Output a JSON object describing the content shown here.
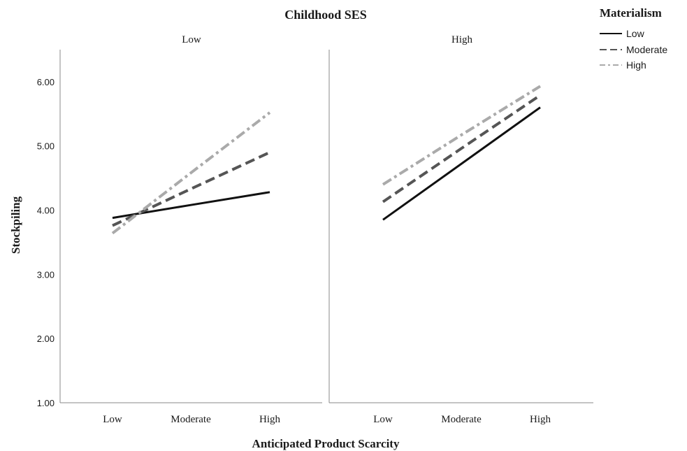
{
  "chart_data": {
    "type": "line",
    "title": "Childhood SES",
    "xlabel": "Anticipated Product Scarcity",
    "ylabel": "Stockpiling",
    "ylim": [
      1,
      6.5
    ],
    "yticks": [
      "1.00",
      "2.00",
      "3.00",
      "4.00",
      "5.00",
      "6.00"
    ],
    "categories": [
      "Low",
      "Moderate",
      "High"
    ],
    "grid": false,
    "legend": {
      "title": "Materialism",
      "placement": "top-right",
      "entries": [
        "Low",
        "Moderate",
        "High"
      ]
    },
    "series_styles": {
      "Low": {
        "color": "#111111",
        "dash": "solid"
      },
      "Moderate": {
        "color": "#555555",
        "dash": "dashed"
      },
      "High": {
        "color": "#aaaaaa",
        "dash": "dash-dot"
      }
    },
    "panels": [
      {
        "label": "Low",
        "series": [
          {
            "name": "Low",
            "values": [
              3.88,
              4.08,
              4.28
            ]
          },
          {
            "name": "Moderate",
            "values": [
              3.76,
              4.33,
              4.9
            ]
          },
          {
            "name": "High",
            "values": [
              3.64,
              4.58,
              5.52
            ]
          }
        ]
      },
      {
        "label": "High",
        "series": [
          {
            "name": "Low",
            "values": [
              3.85,
              4.72,
              5.6
            ]
          },
          {
            "name": "Moderate",
            "values": [
              4.13,
              4.96,
              5.79
            ]
          },
          {
            "name": "High",
            "values": [
              4.4,
              5.17,
              5.93
            ]
          }
        ]
      }
    ]
  }
}
